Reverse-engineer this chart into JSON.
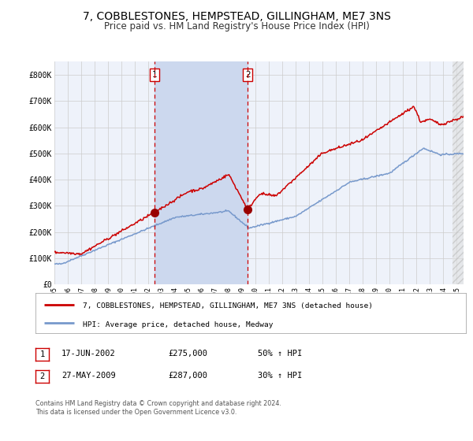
{
  "title": "7, COBBLESTONES, HEMPSTEAD, GILLINGHAM, ME7 3NS",
  "subtitle": "Price paid vs. HM Land Registry's House Price Index (HPI)",
  "title_fontsize": 10,
  "subtitle_fontsize": 8.5,
  "background_color": "#ffffff",
  "plot_bg_color": "#eef2fa",
  "grid_color": "#cccccc",
  "red_line_color": "#cc0000",
  "blue_line_color": "#7799cc",
  "shaded_region_color": "#ccd8ee",
  "marker1_x": 2002.46,
  "marker1_y": 275000,
  "marker2_x": 2009.41,
  "marker2_y": 287000,
  "vline1_x": 2002.46,
  "vline2_x": 2009.41,
  "legend_line1": "7, COBBLESTONES, HEMPSTEAD, GILLINGHAM, ME7 3NS (detached house)",
  "legend_line2": "HPI: Average price, detached house, Medway",
  "table_row1": [
    "1",
    "17-JUN-2002",
    "£275,000",
    "50% ↑ HPI"
  ],
  "table_row2": [
    "2",
    "27-MAY-2009",
    "£287,000",
    "30% ↑ HPI"
  ],
  "footnote": "Contains HM Land Registry data © Crown copyright and database right 2024.\nThis data is licensed under the Open Government Licence v3.0.",
  "ylim": [
    0,
    850000
  ],
  "xlim_start": 1995.0,
  "xlim_end": 2025.5,
  "yticks": [
    0,
    100000,
    200000,
    300000,
    400000,
    500000,
    600000,
    700000,
    800000
  ],
  "ytick_labels": [
    "£0",
    "£100K",
    "£200K",
    "£300K",
    "£400K",
    "£500K",
    "£600K",
    "£700K",
    "£800K"
  ],
  "xticks": [
    1995,
    1996,
    1997,
    1998,
    1999,
    2000,
    2001,
    2002,
    2003,
    2004,
    2005,
    2006,
    2007,
    2008,
    2009,
    2010,
    2011,
    2012,
    2013,
    2014,
    2015,
    2016,
    2017,
    2018,
    2019,
    2020,
    2021,
    2022,
    2023,
    2024,
    2025
  ]
}
